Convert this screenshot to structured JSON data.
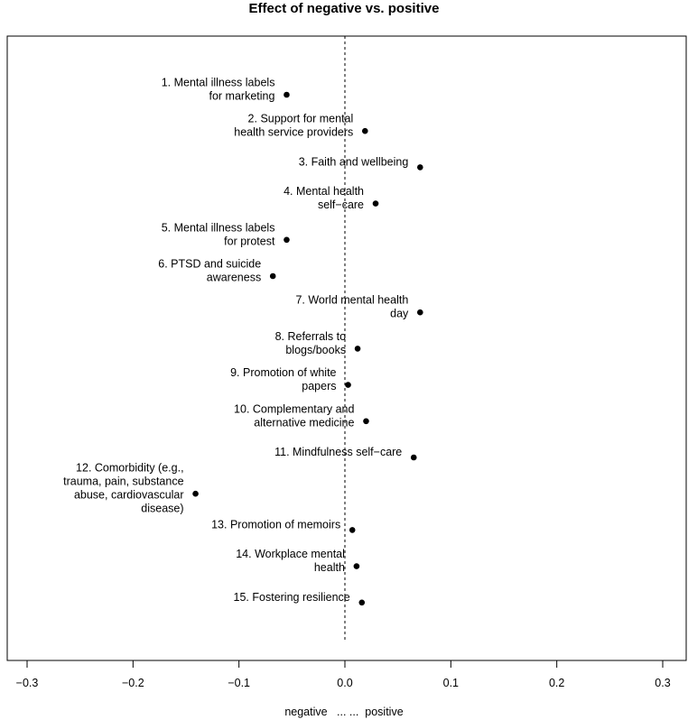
{
  "chart_data": {
    "type": "scatter",
    "title": "Effect of negative vs. positive",
    "xlabel": "negative   ... ...  positive",
    "ylabel": "",
    "xlim": [
      -0.3,
      0.3
    ],
    "xticks": [
      -0.3,
      -0.2,
      -0.1,
      0.0,
      0.1,
      0.2,
      0.3
    ],
    "xtick_labels": [
      "−0.3",
      "−0.2",
      "−0.1",
      "0.0",
      "0.1",
      "0.2",
      "0.3"
    ],
    "reference_line": {
      "x": 0.0,
      "style": "dashed"
    },
    "grid": false,
    "points": [
      {
        "label": [
          "1. Mental illness labels",
          "for marketing"
        ],
        "x": -0.055
      },
      {
        "label": [
          "2. Support for mental",
          "health service providers"
        ],
        "x": 0.019
      },
      {
        "label": [
          "3. Faith and wellbeing"
        ],
        "x": 0.071
      },
      {
        "label": [
          "4. Mental health",
          "self−care"
        ],
        "x": 0.029
      },
      {
        "label": [
          "5. Mental illness labels",
          "for protest"
        ],
        "x": -0.055
      },
      {
        "label": [
          "6. PTSD and suicide",
          "awareness"
        ],
        "x": -0.068
      },
      {
        "label": [
          "7. World mental health",
          "day"
        ],
        "x": 0.071
      },
      {
        "label": [
          "8. Referrals to",
          "blogs/books"
        ],
        "x": 0.012
      },
      {
        "label": [
          "9. Promotion of white",
          "papers"
        ],
        "x": 0.003
      },
      {
        "label": [
          "10. Complementary and",
          "alternative medicine"
        ],
        "x": 0.02
      },
      {
        "label": [
          "11. Mindfulness self−care"
        ],
        "x": 0.065
      },
      {
        "label": [
          "12. Comorbidity (e.g.,",
          "trauma, pain, substance",
          "abuse, cardiovascular",
          "disease)"
        ],
        "x": -0.141
      },
      {
        "label": [
          "13. Promotion of memoirs"
        ],
        "x": 0.007
      },
      {
        "label": [
          "14. Workplace mental",
          "health"
        ],
        "x": 0.011
      },
      {
        "label": [
          "15. Fostering resilience"
        ],
        "x": 0.016
      }
    ]
  }
}
